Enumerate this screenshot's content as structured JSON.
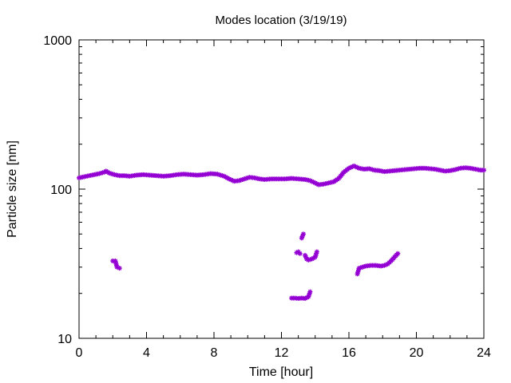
{
  "chart_data": {
    "type": "scatter",
    "title": "Modes location (3/19/19)",
    "xlabel": "Time [hour]",
    "ylabel": "Particle size [nm]",
    "xlim": [
      0,
      24
    ],
    "ylim": [
      10,
      1000
    ],
    "y_scale": "log",
    "x_ticks": [
      0,
      4,
      8,
      12,
      16,
      20,
      24
    ],
    "x_tick_labels": [
      "0",
      "4",
      "8",
      "12",
      "16",
      "20",
      "24"
    ],
    "y_ticks": [
      10,
      100,
      1000
    ],
    "y_tick_labels": [
      "10",
      "100",
      "1000"
    ],
    "grid": false,
    "marker_color": "#9400d3",
    "series": [
      {
        "values": [
          [
            0.0,
            119
          ],
          [
            0.3,
            121
          ],
          [
            0.6,
            123
          ],
          [
            0.9,
            125
          ],
          [
            1.2,
            127
          ],
          [
            1.5,
            130
          ],
          [
            1.6,
            132
          ],
          [
            1.8,
            128
          ],
          [
            2.1,
            125
          ],
          [
            2.4,
            123
          ],
          [
            2.7,
            123
          ],
          [
            3.0,
            122
          ],
          [
            3.4,
            124
          ],
          [
            3.8,
            125
          ],
          [
            4.2,
            124
          ],
          [
            4.6,
            123
          ],
          [
            5.0,
            122
          ],
          [
            5.4,
            123
          ],
          [
            5.8,
            125
          ],
          [
            6.2,
            126
          ],
          [
            6.6,
            125
          ],
          [
            7.0,
            124
          ],
          [
            7.4,
            125
          ],
          [
            7.8,
            127
          ],
          [
            8.2,
            126
          ],
          [
            8.6,
            122
          ],
          [
            8.9,
            117
          ],
          [
            9.2,
            113
          ],
          [
            9.5,
            114
          ],
          [
            9.8,
            117
          ],
          [
            10.1,
            120
          ],
          [
            10.4,
            119
          ],
          [
            10.7,
            117
          ],
          [
            11.0,
            116
          ],
          [
            11.4,
            117
          ],
          [
            11.8,
            117
          ],
          [
            12.2,
            117
          ],
          [
            12.6,
            118
          ],
          [
            13.0,
            117
          ],
          [
            13.4,
            116
          ],
          [
            13.7,
            114
          ],
          [
            14.0,
            110
          ],
          [
            14.2,
            107
          ],
          [
            14.5,
            108
          ],
          [
            14.8,
            110
          ],
          [
            15.1,
            112
          ],
          [
            15.4,
            118
          ],
          [
            15.7,
            130
          ],
          [
            16.0,
            138
          ],
          [
            16.3,
            143
          ],
          [
            16.6,
            138
          ],
          [
            16.9,
            136
          ],
          [
            17.2,
            137
          ],
          [
            17.5,
            134
          ],
          [
            17.8,
            133
          ],
          [
            18.1,
            131
          ],
          [
            18.4,
            132
          ],
          [
            18.7,
            133
          ],
          [
            19.0,
            134
          ],
          [
            19.3,
            135
          ],
          [
            19.6,
            136
          ],
          [
            19.9,
            137
          ],
          [
            20.2,
            138
          ],
          [
            20.5,
            138
          ],
          [
            20.8,
            137
          ],
          [
            21.1,
            136
          ],
          [
            21.4,
            134
          ],
          [
            21.7,
            132
          ],
          [
            22.0,
            133
          ],
          [
            22.3,
            135
          ],
          [
            22.6,
            138
          ],
          [
            22.9,
            139
          ],
          [
            23.2,
            138
          ],
          [
            23.5,
            136
          ],
          [
            23.8,
            134
          ],
          [
            24.0,
            134
          ]
        ]
      },
      {
        "values": [
          [
            2.0,
            33
          ],
          [
            2.15,
            33
          ],
          [
            2.25,
            30
          ],
          [
            2.4,
            29.5
          ]
        ]
      },
      {
        "values": [
          [
            12.6,
            18.6
          ],
          [
            12.8,
            18.6
          ],
          [
            13.0,
            18.5
          ],
          [
            13.2,
            18.6
          ],
          [
            13.4,
            18.5
          ],
          [
            13.6,
            19
          ],
          [
            13.7,
            20.5
          ],
          [
            12.9,
            37.5
          ],
          [
            13.0,
            38
          ],
          [
            13.1,
            37
          ],
          [
            13.2,
            47
          ],
          [
            13.3,
            50
          ],
          [
            13.4,
            36
          ],
          [
            13.5,
            34
          ],
          [
            13.6,
            33.5
          ],
          [
            13.8,
            34
          ],
          [
            14.0,
            35
          ],
          [
            14.1,
            38
          ]
        ]
      },
      {
        "values": [
          [
            16.5,
            27
          ],
          [
            16.6,
            29.5
          ],
          [
            16.8,
            30
          ],
          [
            17.0,
            30.5
          ],
          [
            17.3,
            30.8
          ],
          [
            17.6,
            30.8
          ],
          [
            17.9,
            30.5
          ],
          [
            18.1,
            30.8
          ],
          [
            18.3,
            31.5
          ],
          [
            18.5,
            33
          ],
          [
            18.7,
            35
          ],
          [
            18.9,
            37
          ]
        ]
      }
    ]
  }
}
